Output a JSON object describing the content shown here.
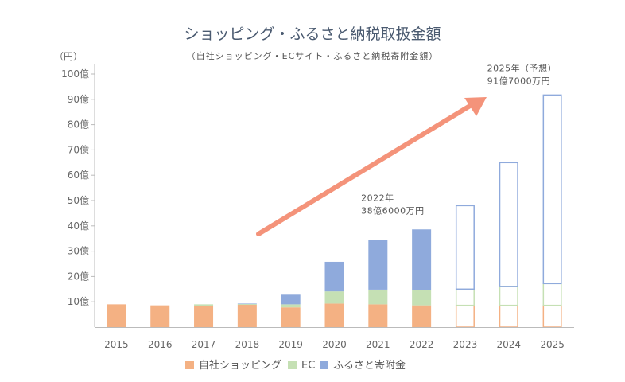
{
  "chart_data": {
    "type": "bar",
    "stacked": true,
    "title": "ショッピング・ふるさと納税取扱金額",
    "subtitle": "（自社ショッピング・ECサイト・ふるさと納税寄附金額）",
    "y_unit": "（円）",
    "ylim": [
      0,
      100
    ],
    "y_ticks": [
      "10億",
      "20億",
      "30億",
      "40億",
      "50億",
      "60億",
      "70億",
      "80億",
      "90億",
      "100億"
    ],
    "y_tick_values": [
      10,
      20,
      30,
      40,
      50,
      60,
      70,
      80,
      90,
      100
    ],
    "categories": [
      "2015",
      "2016",
      "2017",
      "2018",
      "2019",
      "2020",
      "2021",
      "2022",
      "2023",
      "2024",
      "2025"
    ],
    "series": [
      {
        "name": "自社ショッピング",
        "color": "#f4b183",
        "values": [
          9,
          8.6,
          8.3,
          8.8,
          7.8,
          9.3,
          9.0,
          8.6,
          8.6,
          8.6,
          8.6
        ]
      },
      {
        "name": "EC",
        "color": "#c5e0b4",
        "values": [
          0,
          0,
          0.7,
          0.3,
          1.2,
          4.8,
          5.8,
          6.0,
          6.4,
          7.4,
          8.6
        ]
      },
      {
        "name": "ふるさと寄附金",
        "color": "#8faadc",
        "values": [
          0,
          0,
          0,
          0.2,
          3.8,
          11.7,
          19.7,
          24.0,
          33.0,
          49.0,
          74.5
        ]
      }
    ],
    "forecast_categories": [
      "2023",
      "2024",
      "2025"
    ],
    "annotations": [
      {
        "lines": [
          "2022年",
          "38億6000万円"
        ],
        "category": "2022"
      },
      {
        "lines": [
          "2025年（予想）",
          "91億7000万円"
        ],
        "category": "2025"
      }
    ],
    "trend_arrow_color": "#f4937a",
    "grid": false,
    "legend_position": "bottom"
  }
}
